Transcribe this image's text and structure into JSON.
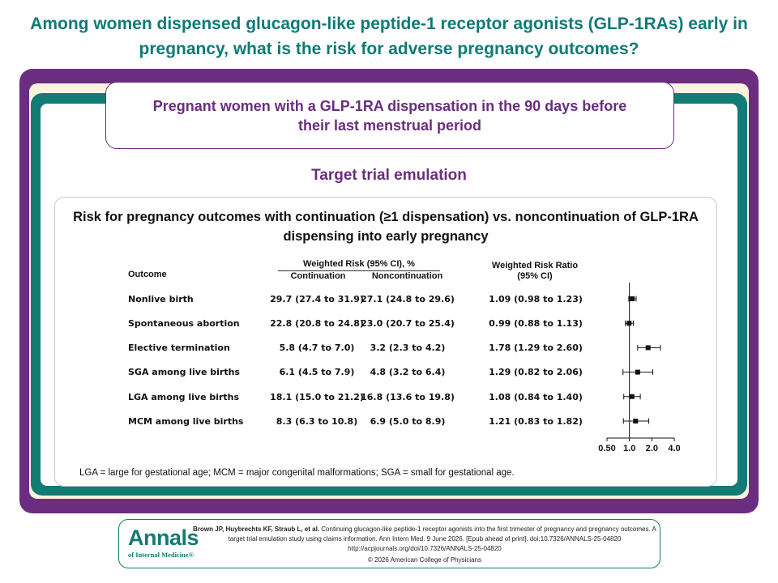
{
  "title": "Among women dispensed glucagon-like peptide-1 receptor agonists (GLP-1RAs) early in pregnancy, what is the risk for adverse pregnancy outcomes?",
  "population": "Pregnant women with a GLP-1RA dispensation in the 90 days before their last menstrual period",
  "section_title": "Target trial emulation",
  "chart_title": "Risk for pregnancy outcomes with continuation (≥1 dispensation) vs. noncontinuation of GLP-1RA dispensing into early pregnancy",
  "table_headers": {
    "outcome": "Outcome",
    "weighted_risk": "Weighted Risk (95% CI), %",
    "continuation": "Continuation",
    "noncontinuation": "Noncontinuation",
    "ratio_line1": "Weighted Risk Ratio",
    "ratio_line2": "(95% CI)"
  },
  "rows": [
    {
      "outcome": "Nonlive birth",
      "continuation": "29.7 (27.4 to 31.9)",
      "noncontinuation": "27.1 (24.8 to 29.6)",
      "ratio": "1.09 (0.98 to 1.23)"
    },
    {
      "outcome": "Spontaneous abortion",
      "continuation": "22.8 (20.8 to 24.8)",
      "noncontinuation": "23.0 (20.7 to 25.4)",
      "ratio": "0.99 (0.88 to 1.13)"
    },
    {
      "outcome": "Elective termination",
      "continuation": "5.8 (4.7 to 7.0)",
      "noncontinuation": "3.2 (2.3 to 4.2)",
      "ratio": "1.78 (1.29 to 2.60)"
    },
    {
      "outcome": "SGA among live births",
      "continuation": "6.1 (4.5 to 7.9)",
      "noncontinuation": "4.8 (3.2 to 6.4)",
      "ratio": "1.29 (0.82 to 2.06)"
    },
    {
      "outcome": "LGA among live births",
      "continuation": "18.1 (15.0 to 21.2)",
      "noncontinuation": "16.8 (13.6 to 19.8)",
      "ratio": "1.08 (0.84 to 1.40)"
    },
    {
      "outcome": "MCM among live births",
      "continuation": "8.3 (6.3 to 10.8)",
      "noncontinuation": "6.9 (5.0 to 8.9)",
      "ratio": "1.21 (0.83 to 1.82)"
    }
  ],
  "chart_data": {
    "type": "scatter",
    "subtype": "forest-plot",
    "title": "Risk for pregnancy outcomes with continuation (≥1 dispensation) vs. noncontinuation of GLP-1RA dispensing into early pregnancy",
    "x_scale": "log",
    "xlim": [
      0.5,
      4.0
    ],
    "x_ticks": [
      0.5,
      1.0,
      2.0,
      4.0
    ],
    "x_tick_labels": [
      "0.50",
      "1.0",
      "2.0",
      "4.0"
    ],
    "reference_line": 1.0,
    "categories": [
      "Nonlive birth",
      "Spontaneous abortion",
      "Elective termination",
      "SGA among live births",
      "LGA among live births",
      "MCM among live births"
    ],
    "estimates": [
      1.09,
      0.99,
      1.78,
      1.29,
      1.08,
      1.21
    ],
    "ci_lower": [
      0.98,
      0.88,
      1.29,
      0.82,
      0.84,
      0.83
    ],
    "ci_upper": [
      1.23,
      1.13,
      2.6,
      2.06,
      1.4,
      1.82
    ],
    "grid": false
  },
  "footnote": "LGA = large for gestational age; MCM = major congenital malformations; SGA = small for gestational age.",
  "logo": {
    "name": "Annals",
    "subtitle": "of Internal Medicine®"
  },
  "citation": {
    "authors": "Brown JP, Huybrechts KF, Straub L, et al.",
    "text": "Continuing glucagon-like peptide-1 receptor agonists into the first trimester of pregnancy and pregnancy outcomes. A target trial emulation study using claims information. Ann Intern Med. 9 June 2026. [Epub ahead of print]. doi:10.7326/ANNALS-25-04820",
    "url": "http://acpjournals.org/doi/10.7326/ANNALS-25-04820",
    "copyright": "© 2026 American College of Physicians"
  },
  "colors": {
    "teal": "#127b74",
    "purple": "#6b2d7f",
    "cream": "#fbf3df"
  }
}
